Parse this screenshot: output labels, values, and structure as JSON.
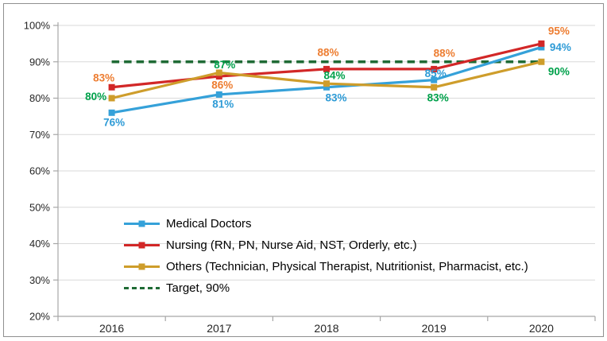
{
  "chart_data": {
    "type": "line",
    "title": "",
    "categories": [
      "2016",
      "2017",
      "2018",
      "2019",
      "2020"
    ],
    "series": [
      {
        "name": "Medical Doctors",
        "values": [
          76,
          81,
          83,
          85,
          94
        ],
        "labels": [
          "76%",
          "81%",
          "83%",
          "85%",
          "94%"
        ],
        "line_color": "#35A1D9",
        "label_color": "#2E9BD6",
        "marker": "square"
      },
      {
        "name": "Nursing (RN, PN, Nurse Aid, NST, Orderly, etc.)",
        "values": [
          83,
          86,
          88,
          88,
          95
        ],
        "labels": [
          "83%",
          "86%",
          "88%",
          "88%",
          "95%"
        ],
        "line_color": "#D22727",
        "label_color": "#ED7D31",
        "marker": "square"
      },
      {
        "name": "Others (Technician, Physical Therapist, Nutritionist, Pharmacist, etc.)",
        "values": [
          80,
          87,
          84,
          83,
          90
        ],
        "labels": [
          "80%",
          "87%",
          "84%",
          "83%",
          "90%"
        ],
        "line_color": "#CE9D2B",
        "label_color": "#00A14B",
        "marker": "square"
      }
    ],
    "target": {
      "name": "Target, 90%",
      "value": 90,
      "line_color": "#1F6B35",
      "style": "dashed"
    },
    "y_axis": {
      "min": 20,
      "max": 100,
      "step": 10,
      "tick_labels": [
        "20%",
        "30%",
        "40%",
        "50%",
        "60%",
        "70%",
        "80%",
        "90%",
        "100%"
      ]
    },
    "xlabel": "",
    "ylabel": "",
    "grid": true,
    "legend_position": "inside-bottom-left",
    "colors": {
      "gridline": "#D9D9D9",
      "axis": "#A6A6A6",
      "axis_text": "#262626",
      "legend_text": "#000000",
      "frame_border": "#8F8F8F",
      "background": "#FFFFFF"
    }
  }
}
